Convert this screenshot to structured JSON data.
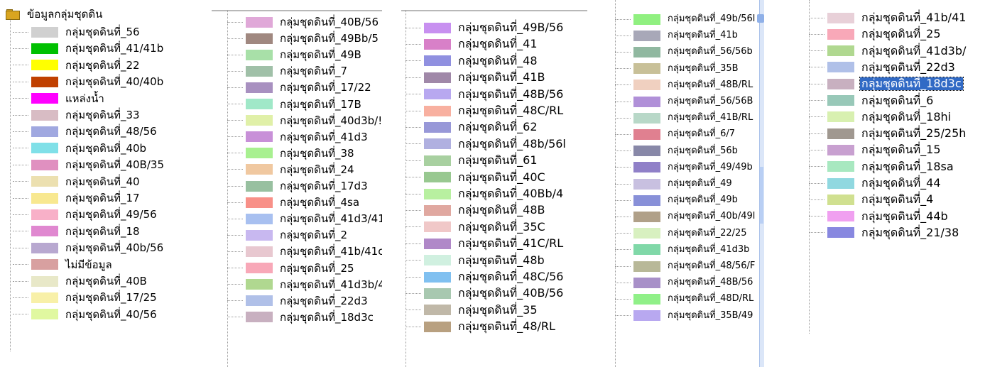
{
  "panels": [
    {
      "root_label": "ข้อมูลกลุ่มชุดดิน",
      "items": [
        {
          "label": "กลุ่มชุดดินที่_56",
          "color": "#d0d0d0"
        },
        {
          "label": "กลุ่มชุดดินที่_41/41b",
          "color": "#00c000"
        },
        {
          "label": "กลุ่มชุดดินที่_22",
          "color": "#ffff00"
        },
        {
          "label": "กลุ่มชุดดินที่_40/40b",
          "color": "#c04000"
        },
        {
          "label": "แหล่งน้ำ",
          "color": "#ff00ff"
        },
        {
          "label": "กลุ่มชุดดินที่_33",
          "color": "#d8bcc4"
        },
        {
          "label": "กลุ่มชุดดินที่_48/56",
          "color": "#a0a8e0"
        },
        {
          "label": "กลุ่มชุดดินที่_40b",
          "color": "#80e0e8"
        },
        {
          "label": "กลุ่มชุดดินที่_40B/35",
          "color": "#e090c0"
        },
        {
          "label": "กลุ่มชุดดินที่_40",
          "color": "#ece0b0"
        },
        {
          "label": "กลุ่มชุดดินที่_17",
          "color": "#f8e890"
        },
        {
          "label": "กลุ่มชุดดินที่_49/56",
          "color": "#f8b0c8"
        },
        {
          "label": "กลุ่มชุดดินที่_18",
          "color": "#e088d0"
        },
        {
          "label": "กลุ่มชุดดินที่_40b/56",
          "color": "#b8a8d0"
        },
        {
          "label": "ไม่มีข้อมูล",
          "color": "#d8a0a0"
        },
        {
          "label": "กลุ่มชุดดินที่_40B",
          "color": "#e8e8c8"
        },
        {
          "label": "กลุ่มชุดดินที่_17/25",
          "color": "#f8f0a8"
        },
        {
          "label": "กลุ่มชุดดินที่_40/56",
          "color": "#e0f8a0"
        }
      ]
    },
    {
      "items": [
        {
          "label": "กลุ่มชุดดินที่_40B/56",
          "color": "#e0a8d8"
        },
        {
          "label": "กลุ่มชุดดินที่_49Bb/5",
          "color": "#a08880"
        },
        {
          "label": "กลุ่มชุดดินที่_49B",
          "color": "#a8e0a8"
        },
        {
          "label": "กลุ่มชุดดินที่_7",
          "color": "#a0c0a8"
        },
        {
          "label": "กลุ่มชุดดินที่_17/22",
          "color": "#a890c0"
        },
        {
          "label": "กลุ่มชุดดินที่_17B",
          "color": "#a0e8c8"
        },
        {
          "label": "กลุ่มชุดดินที่_40d3b/!",
          "color": "#e0f0a8"
        },
        {
          "label": "กลุ่มชุดดินที่_41d3",
          "color": "#c890d8"
        },
        {
          "label": "กลุ่มชุดดินที่_38",
          "color": "#a8f090"
        },
        {
          "label": "กลุ่มชุดดินที่_24",
          "color": "#f0c8a0"
        },
        {
          "label": "กลุ่มชุดดินที่_17d3",
          "color": "#98c0a0"
        },
        {
          "label": "กลุ่มชุดดินที่_4sa",
          "color": "#f89088"
        },
        {
          "label": "กลุ่มชุดดินที่_41d3/41",
          "color": "#a8c0f0"
        },
        {
          "label": "กลุ่มชุดดินที่_2",
          "color": "#c8b8f0"
        },
        {
          "label": "กลุ่มชุดดินที่_41b/41c",
          "color": "#e8c8d0"
        },
        {
          "label": "กลุ่มชุดดินที่_25",
          "color": "#f8a8b8"
        },
        {
          "label": "กลุ่มชุดดินที่_41d3b/4",
          "color": "#b0d890"
        },
        {
          "label": "กลุ่มชุดดินที่_22d3",
          "color": "#b0c0e8"
        },
        {
          "label": "กลุ่มชุดดินที่_18d3c",
          "color": "#c8b0c0"
        }
      ]
    },
    {
      "items": [
        {
          "label": "กลุ่มชุดดินที่_49B/56",
          "color": "#c890f0"
        },
        {
          "label": "กลุ่มชุดดินที่_41",
          "color": "#d880c8"
        },
        {
          "label": "กลุ่มชุดดินที่_48",
          "color": "#9090e0"
        },
        {
          "label": "กลุ่มชุดดินที่_41B",
          "color": "#a088a8"
        },
        {
          "label": "กลุ่มชุดดินที่_48B/56",
          "color": "#b8a8f0"
        },
        {
          "label": "กลุ่มชุดดินที่_48C/RL",
          "color": "#f8b0a0"
        },
        {
          "label": "กลุ่มชุดดินที่_62",
          "color": "#9898d8"
        },
        {
          "label": "กลุ่มชุดดินที่_48b/56l",
          "color": "#b0b0e0"
        },
        {
          "label": "กลุ่มชุดดินที่_61",
          "color": "#a8d0a0"
        },
        {
          "label": "กลุ่มชุดดินที่_40C",
          "color": "#98c890"
        },
        {
          "label": "กลุ่มชุดดินที่_40Bb/4",
          "color": "#b8f0a0"
        },
        {
          "label": "กลุ่มชุดดินที่_48B",
          "color": "#e0a8a0"
        },
        {
          "label": "กลุ่มชุดดินที่_35C",
          "color": "#f0c8c8"
        },
        {
          "label": "กลุ่มชุดดินที่_41C/RL",
          "color": "#b088c8"
        },
        {
          "label": "กลุ่มชุดดินที่_48b",
          "color": "#d0f0e0"
        },
        {
          "label": "กลุ่มชุดดินที่_48C/56",
          "color": "#80c0f0"
        },
        {
          "label": "กลุ่มชุดดินที่_40B/56",
          "color": "#a8c8b0"
        },
        {
          "label": "กลุ่มชุดดินที่_35",
          "color": "#c0b8a8"
        },
        {
          "label": "กลุ่มชุดดินที่_48/RL",
          "color": "#b8a080"
        }
      ]
    },
    {
      "items": [
        {
          "label": "กลุ่มชุดดินที่_49b/56l",
          "color": "#90f080"
        },
        {
          "label": "กลุ่มชุดดินที่_41b",
          "color": "#a8a8b8"
        },
        {
          "label": "กลุ่มชุดดินที่_56/56b",
          "color": "#90b8a0"
        },
        {
          "label": "กลุ่มชุดดินที่_35B",
          "color": "#c8c098"
        },
        {
          "label": "กลุ่มชุดดินที่_48B/RL",
          "color": "#f0d0c0"
        },
        {
          "label": "กลุ่มชุดดินที่_56/56B",
          "color": "#b090d8"
        },
        {
          "label": "กลุ่มชุดดินที่_41B/RL",
          "color": "#b8d8c8"
        },
        {
          "label": "กลุ่มชุดดินที่_6/7",
          "color": "#e08090"
        },
        {
          "label": "กลุ่มชุดดินที่_56b",
          "color": "#8888a8"
        },
        {
          "label": "กลุ่มชุดดินที่_49/49b",
          "color": "#9080c8"
        },
        {
          "label": "กลุ่มชุดดินที่_49",
          "color": "#c8c0e0"
        },
        {
          "label": "กลุ่มชุดดินที่_49b",
          "color": "#8890d8"
        },
        {
          "label": "กลุ่มชุดดินที่_40b/49l",
          "color": "#b0a088"
        },
        {
          "label": "กลุ่มชุดดินที่_22/25",
          "color": "#d8f0c0"
        },
        {
          "label": "กลุ่มชุดดินที่_41d3b",
          "color": "#80d8a8"
        },
        {
          "label": "กลุ่มชุดดินที่_48/56/F",
          "color": "#b8b898"
        },
        {
          "label": "กลุ่มชุดดินที่_48B/56",
          "color": "#a890c8"
        },
        {
          "label": "กลุ่มชุดดินที่_48D/RL",
          "color": "#90f088"
        },
        {
          "label": "กลุ่มชุดดินที่_35B/49",
          "color": "#b8a8f0"
        }
      ]
    },
    {
      "items": [
        {
          "label": "กลุ่มชุดดินที่_41b/41",
          "color": "#e8d0d8"
        },
        {
          "label": "กลุ่มชุดดินที่_25",
          "color": "#f8a8b8"
        },
        {
          "label": "กลุ่มชุดดินที่_41d3b/",
          "color": "#b0d890"
        },
        {
          "label": "กลุ่มชุดดินที่_22d3",
          "color": "#b0c0e8"
        },
        {
          "label": "กลุ่มชุดดินที่_18d3c",
          "color": "#c8b0c0",
          "selected": true
        },
        {
          "label": "กลุ่มชุดดินที่_6",
          "color": "#98c8b8"
        },
        {
          "label": "กลุ่มชุดดินที่_18hi",
          "color": "#d8f0b0"
        },
        {
          "label": "กลุ่มชุดดินที่_25/25h",
          "color": "#a09890"
        },
        {
          "label": "กลุ่มชุดดินที่_15",
          "color": "#c8a0d0"
        },
        {
          "label": "กลุ่มชุดดินที่_18sa",
          "color": "#a8e8c0"
        },
        {
          "label": "กลุ่มชุดดินที่_44",
          "color": "#90d8e0"
        },
        {
          "label": "กลุ่มชุดดินที่_4",
          "color": "#d0e090"
        },
        {
          "label": "กลุ่มชุดดินที่_44b",
          "color": "#f0a0f0"
        },
        {
          "label": "กลุ่มชุดดินที่_21/38",
          "color": "#8888e0"
        }
      ]
    }
  ]
}
